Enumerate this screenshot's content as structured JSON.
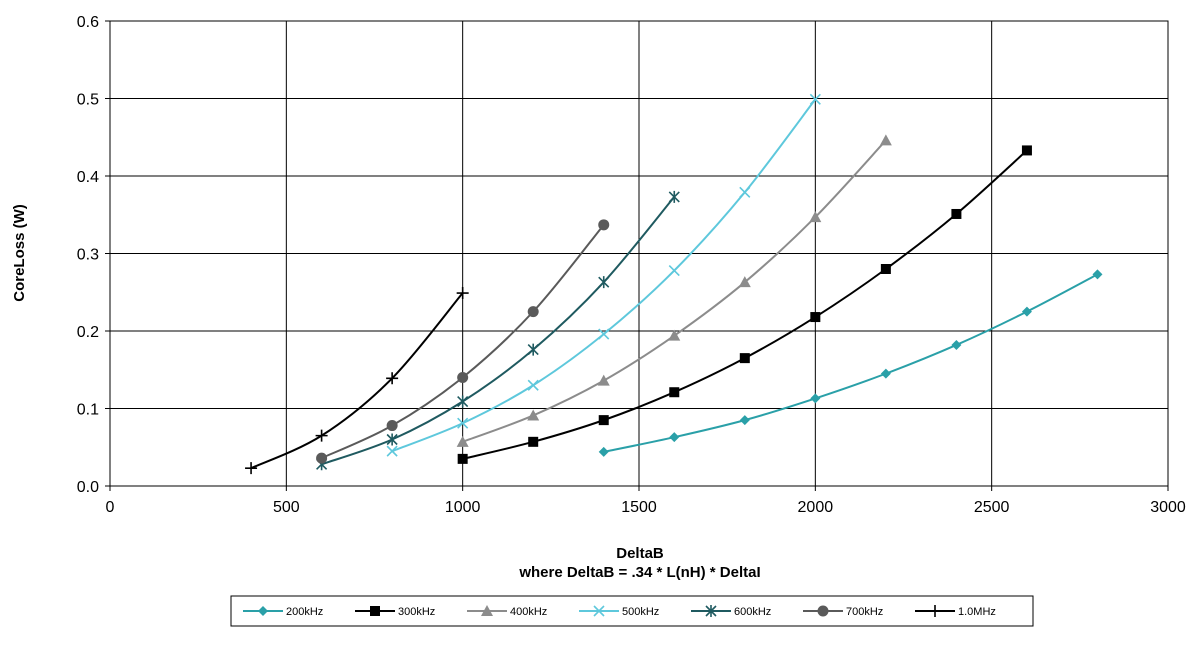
{
  "chart_data": {
    "type": "line",
    "title": "",
    "xlabel": "DeltaB",
    "xlabel_sub": "where DeltaB = .34 * L(nH) * DeltaI",
    "ylabel": "CoreLoss (W)",
    "xlim": [
      0,
      3000
    ],
    "ylim": [
      0,
      0.6
    ],
    "xticks": [
      0,
      500,
      1000,
      1500,
      2000,
      2500,
      3000
    ],
    "yticks": [
      0.0,
      0.1,
      0.2,
      0.3,
      0.4,
      0.5,
      0.6
    ],
    "ytick_labels": [
      "0.0",
      "0.1",
      "0.2",
      "0.3",
      "0.4",
      "0.5",
      "0.6"
    ],
    "grid": true,
    "legend_position": "bottom",
    "series": [
      {
        "name": "200kHz",
        "color": "#2aa0a8",
        "marker": "diamond",
        "x": [
          1400,
          1600,
          1800,
          2000,
          2200,
          2400,
          2600,
          2800
        ],
        "y": [
          0.044,
          0.063,
          0.085,
          0.113,
          0.145,
          0.182,
          0.225,
          0.273
        ]
      },
      {
        "name": "300kHz",
        "color": "#000000",
        "marker": "square",
        "x": [
          1000,
          1200,
          1400,
          1600,
          1800,
          2000,
          2200,
          2400,
          2600
        ],
        "y": [
          0.035,
          0.057,
          0.085,
          0.121,
          0.165,
          0.218,
          0.28,
          0.351,
          0.433
        ]
      },
      {
        "name": "400kHz",
        "color": "#8c8c8c",
        "marker": "triangle",
        "x": [
          1000,
          1200,
          1400,
          1600,
          1800,
          2000,
          2200
        ],
        "y": [
          0.057,
          0.091,
          0.136,
          0.194,
          0.263,
          0.347,
          0.446
        ]
      },
      {
        "name": "500kHz",
        "color": "#5ec8dc",
        "marker": "x",
        "x": [
          800,
          1000,
          1200,
          1400,
          1600,
          1800,
          2000
        ],
        "y": [
          0.045,
          0.081,
          0.13,
          0.196,
          0.278,
          0.379,
          0.499
        ]
      },
      {
        "name": "600kHz",
        "color": "#1f5a60",
        "marker": "star",
        "x": [
          600,
          800,
          1000,
          1200,
          1400,
          1600
        ],
        "y": [
          0.028,
          0.06,
          0.109,
          0.176,
          0.263,
          0.373
        ]
      },
      {
        "name": "700kHz",
        "color": "#5a5a5a",
        "marker": "circle",
        "x": [
          600,
          800,
          1000,
          1200,
          1400
        ],
        "y": [
          0.036,
          0.078,
          0.14,
          0.225,
          0.337
        ]
      },
      {
        "name": "1.0MHz",
        "color": "#000000",
        "marker": "plus",
        "x": [
          400,
          600,
          800,
          1000
        ],
        "y": [
          0.023,
          0.065,
          0.139,
          0.249
        ]
      }
    ]
  }
}
